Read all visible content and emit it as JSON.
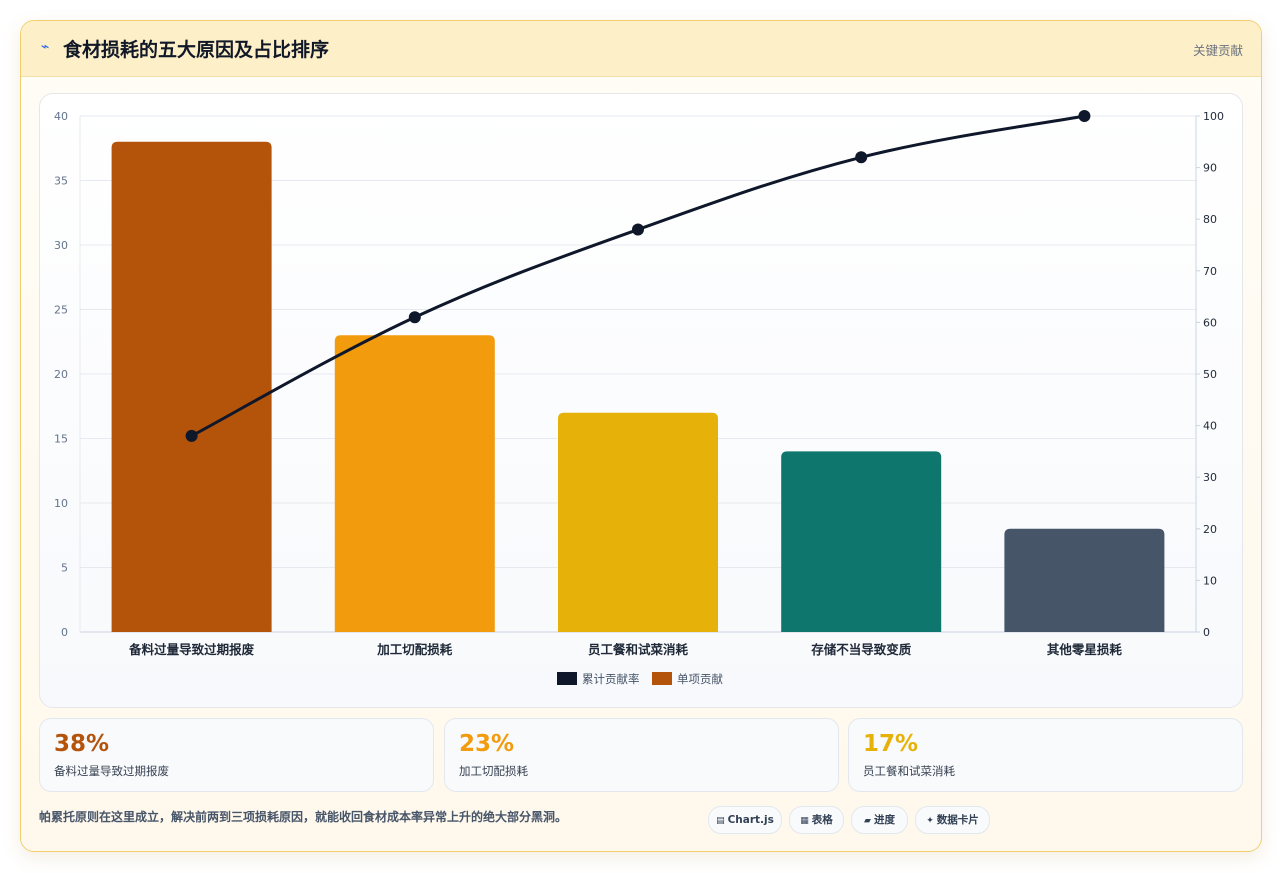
{
  "header": {
    "title_icon": "chart-line-icon",
    "title": "食材损耗的五大原因及占比排序",
    "tag": "关键贡献"
  },
  "chart_data": {
    "type": "bar",
    "categories": [
      "备料过量导致过期报废",
      "加工切配损耗",
      "员工餐和试菜消耗",
      "存储不当导致变质",
      "其他零星损耗"
    ],
    "series": [
      {
        "name": "单项贡献",
        "type": "bar",
        "axis": "left",
        "values": [
          38,
          23,
          17,
          14,
          8
        ],
        "colors": [
          "#b4530a",
          "#f29b0c",
          "#e6b20a",
          "#0f766e",
          "#465568"
        ]
      },
      {
        "name": "累计贡献率",
        "type": "line",
        "axis": "right",
        "values": [
          38,
          61,
          78,
          92,
          100
        ],
        "color": "#0f172a"
      }
    ],
    "y_left": {
      "min": 0,
      "max": 40,
      "ticks": [
        0,
        5,
        10,
        15,
        20,
        25,
        30,
        35,
        40
      ]
    },
    "y_right": {
      "min": 0,
      "max": 100,
      "ticks": [
        0,
        10,
        20,
        30,
        40,
        50,
        60,
        70,
        80,
        90,
        100
      ]
    },
    "legend": {
      "position": "bottom",
      "entries": [
        "累计贡献率",
        "单项贡献"
      ]
    },
    "grid": true
  },
  "stats": [
    {
      "value": "38%",
      "label": "备料过量导致过期报废",
      "color": "#b4530a"
    },
    {
      "value": "23%",
      "label": "加工切配损耗",
      "color": "#f29b0c"
    },
    {
      "value": "17%",
      "label": "员工餐和试菜消耗",
      "color": "#e6b20a"
    }
  ],
  "footer": {
    "note": "帕累托原则在这里成立，解决前两到三项损耗原因，就能收回食材成本率异常上升的绝大部分黑洞。",
    "chips": [
      {
        "icon": "chart-icon",
        "glyph": "▤",
        "label": "Chart.js"
      },
      {
        "icon": "table-icon",
        "glyph": "▦",
        "label": "表格"
      },
      {
        "icon": "progress-icon",
        "glyph": "▰",
        "label": "进度"
      },
      {
        "icon": "card-icon",
        "glyph": "✦",
        "label": "数据卡片"
      }
    ]
  }
}
